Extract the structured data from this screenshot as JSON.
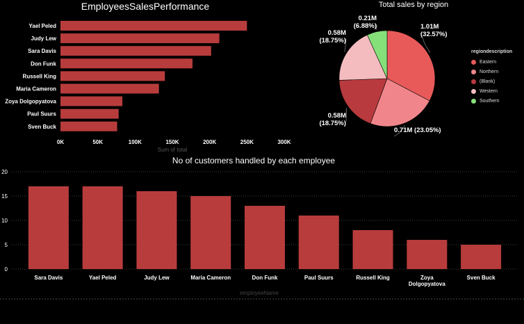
{
  "chart_data": [
    {
      "type": "bar",
      "orientation": "horizontal",
      "title": "EmployeesSalesPerformance",
      "xlabel": "Sum of total",
      "ylabel": "",
      "categories": [
        "Yael Peled",
        "Judy Lew",
        "Sara Davis",
        "Don Funk",
        "Russell King",
        "Maria Cameron",
        "Zoya Dolgopyatova",
        "Paul Suurs",
        "Sven Buck"
      ],
      "values": [
        250000,
        213000,
        202000,
        177000,
        140000,
        132000,
        83000,
        78000,
        76000
      ],
      "xlim": [
        0,
        300000
      ],
      "xticks": [
        "0K",
        "50K",
        "100K",
        "150K",
        "200K",
        "250K",
        "300K"
      ],
      "color": "#b83c3c"
    },
    {
      "type": "pie",
      "title": "Total sales by region",
      "legend_title": "regiondescription",
      "legend_position": "right",
      "slices": [
        {
          "name": "Eastern",
          "value": 1.01,
          "label": "1.01M\n(32.57%)",
          "color": "#e85a5a"
        },
        {
          "name": "Northern",
          "value": 0.71,
          "label": "0.71M (23.05%)",
          "color": "#f0868b"
        },
        {
          "name": "(Blank)",
          "value": 0.58,
          "label": "0.58M\n(18.75%)",
          "color": "#b83a3e"
        },
        {
          "name": "Western",
          "value": 0.58,
          "label": "0.58M\n(18.75%)",
          "color": "#f5bcc0"
        },
        {
          "name": "Southern",
          "value": 0.21,
          "label": "0.21M\n(6.88%)",
          "color": "#86e07a"
        }
      ]
    },
    {
      "type": "bar",
      "orientation": "vertical",
      "title": "No of customers handled by each employee",
      "xlabel": "employeeName",
      "ylabel": "",
      "categories": [
        "Sara Davis",
        "Yael Peled",
        "Judy Lew",
        "Maria Cameron",
        "Don Funk",
        "Paul Suurs",
        "Russell King",
        "Zoya Dolgopyatova",
        "Sven Buck"
      ],
      "values": [
        17,
        17,
        16,
        15,
        13,
        11,
        8,
        6,
        5
      ],
      "ylim": [
        0,
        20
      ],
      "yticks": [
        0,
        5,
        10,
        15,
        20
      ],
      "grid": true,
      "color": "#b83c3c"
    }
  ]
}
